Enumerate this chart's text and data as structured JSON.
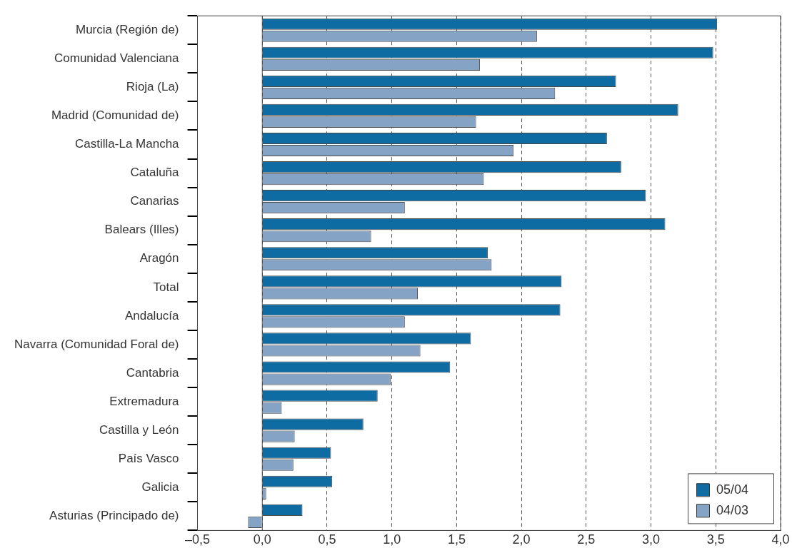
{
  "chart_data": {
    "type": "bar",
    "orientation": "horizontal",
    "categories": [
      "Murcia (Región de)",
      "Comunidad Valenciana",
      "Rioja (La)",
      "Madrid (Comunidad de)",
      "Castilla-La Mancha",
      "Cataluña",
      "Canarias",
      "Balears (Illes)",
      "Aragón",
      "Total",
      "Andalucía",
      "Navarra (Comunidad Foral de)",
      "Cantabria",
      "Extremadura",
      "Castilla y León",
      "País Vasco",
      "Galicia",
      "Asturias (Principado de)"
    ],
    "series": [
      {
        "name": "05/04",
        "color": "#0f6ca3",
        "values": [
          3.51,
          3.48,
          2.73,
          3.21,
          2.66,
          2.77,
          2.96,
          3.11,
          1.74,
          2.31,
          2.3,
          1.61,
          1.45,
          0.89,
          0.78,
          0.53,
          0.54,
          0.31
        ]
      },
      {
        "name": "04/03",
        "color": "#85a3c4",
        "values": [
          2.12,
          1.68,
          2.26,
          1.65,
          1.94,
          1.71,
          1.1,
          0.84,
          1.77,
          1.2,
          1.1,
          1.22,
          0.99,
          0.15,
          0.25,
          0.24,
          0.03,
          -0.11
        ]
      }
    ],
    "xlim": [
      -0.5,
      4.0
    ],
    "xticks": [
      {
        "value": -0.5,
        "label": "–0,5"
      },
      {
        "value": 0,
        "label": "0,0"
      },
      {
        "value": 0.5,
        "label": "0,5"
      },
      {
        "value": 1,
        "label": "1,0"
      },
      {
        "value": 1.5,
        "label": "1,5"
      },
      {
        "value": 2,
        "label": "2,0"
      },
      {
        "value": 2.5,
        "label": "2,5"
      },
      {
        "value": 3,
        "label": "3,0"
      },
      {
        "value": 3.5,
        "label": "3,5"
      },
      {
        "value": 4,
        "label": "4,0"
      }
    ],
    "grid": "x",
    "legend": "bottom right"
  }
}
